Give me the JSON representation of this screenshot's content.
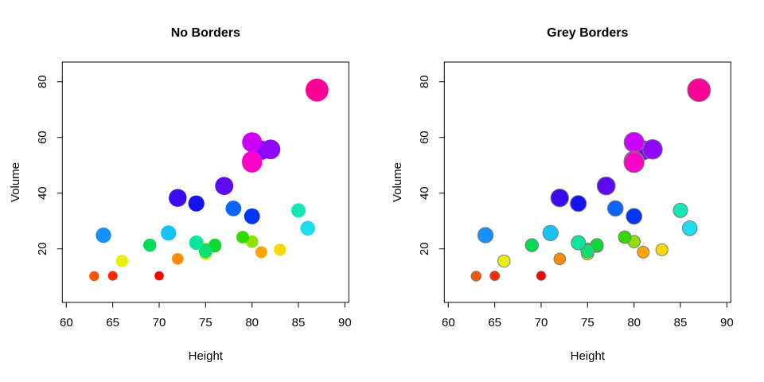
{
  "figure": {
    "background": "#FFFFFF",
    "axis_color": "#1A1A1A"
  },
  "chart_data": {
    "type": "scatter",
    "panels": [
      {
        "title": "No Borders",
        "point_border": "none"
      },
      {
        "title": "Grey Borders",
        "point_border": "#7C7C7C"
      }
    ],
    "xlabel": "Height",
    "ylabel": "Volume",
    "x_ticks": [
      60,
      65,
      70,
      75,
      80,
      85,
      90
    ],
    "y_ticks": [
      20,
      40,
      60,
      80
    ],
    "xlim": [
      59.6,
      90.4
    ],
    "ylim": [
      0.8,
      87.1
    ],
    "grid": false,
    "legend": false,
    "size_encoding": "bubble radius proportional to girth (radius_px = girth * 0.7)",
    "points": [
      {
        "height": 70,
        "volume": 10.3,
        "girth": 8.3,
        "color": "#FF0000"
      },
      {
        "height": 65,
        "volume": 10.3,
        "girth": 8.6,
        "color": "#FF2800"
      },
      {
        "height": 63,
        "volume": 10.2,
        "girth": 8.8,
        "color": "#FF5500"
      },
      {
        "height": 72,
        "volume": 16.4,
        "girth": 10.5,
        "color": "#FF8C00"
      },
      {
        "height": 81,
        "volume": 18.8,
        "girth": 10.7,
        "color": "#FFA500"
      },
      {
        "height": 83,
        "volume": 19.7,
        "girth": 10.8,
        "color": "#FFD700"
      },
      {
        "height": 66,
        "volume": 15.6,
        "girth": 11.0,
        "color": "#E8F000"
      },
      {
        "height": 75,
        "volume": 18.2,
        "girth": 11.0,
        "color": "#C8F000"
      },
      {
        "height": 80,
        "volume": 22.6,
        "girth": 11.1,
        "color": "#8FE000"
      },
      {
        "height": 75,
        "volume": 19.9,
        "girth": 11.2,
        "color": "#55DC00"
      },
      {
        "height": 79,
        "volume": 24.2,
        "girth": 11.3,
        "color": "#30D900"
      },
      {
        "height": 76,
        "volume": 21.0,
        "girth": 11.4,
        "color": "#18D818"
      },
      {
        "height": 76,
        "volume": 21.4,
        "girth": 11.4,
        "color": "#0ED832"
      },
      {
        "height": 69,
        "volume": 21.3,
        "girth": 11.7,
        "color": "#00DC55"
      },
      {
        "height": 75,
        "volume": 19.1,
        "girth": 12.0,
        "color": "#0FE070"
      },
      {
        "height": 74,
        "volume": 22.2,
        "girth": 12.9,
        "color": "#0DE59B"
      },
      {
        "height": 85,
        "volume": 33.8,
        "girth": 12.9,
        "color": "#14E6B4"
      },
      {
        "height": 86,
        "volume": 27.4,
        "girth": 13.3,
        "color": "#1FDDEE"
      },
      {
        "height": 71,
        "volume": 25.7,
        "girth": 13.7,
        "color": "#18C3F2"
      },
      {
        "height": 64,
        "volume": 24.9,
        "girth": 13.8,
        "color": "#1590FF"
      },
      {
        "height": 78,
        "volume": 34.5,
        "girth": 14.0,
        "color": "#0A64FF"
      },
      {
        "height": 80,
        "volume": 31.7,
        "girth": 14.2,
        "color": "#0034FF"
      },
      {
        "height": 74,
        "volume": 36.3,
        "girth": 14.5,
        "color": "#1414F0"
      },
      {
        "height": 72,
        "volume": 38.3,
        "girth": 16.0,
        "color": "#3C0AF0"
      },
      {
        "height": 77,
        "volume": 42.6,
        "girth": 16.3,
        "color": "#5E0AF0"
      },
      {
        "height": 81,
        "volume": 55.4,
        "girth": 17.3,
        "color": "#7C00FA"
      },
      {
        "height": 82,
        "volume": 55.7,
        "girth": 17.5,
        "color": "#8F0AFA"
      },
      {
        "height": 80,
        "volume": 58.3,
        "girth": 17.9,
        "color": "#CC00FF"
      },
      {
        "height": 80,
        "volume": 51.5,
        "girth": 18.0,
        "color": "#F000DC"
      },
      {
        "height": 80,
        "volume": 51.0,
        "girth": 18.0,
        "color": "#FF00C8"
      },
      {
        "height": 87,
        "volume": 77.0,
        "girth": 20.6,
        "color": "#FF0096"
      }
    ]
  }
}
